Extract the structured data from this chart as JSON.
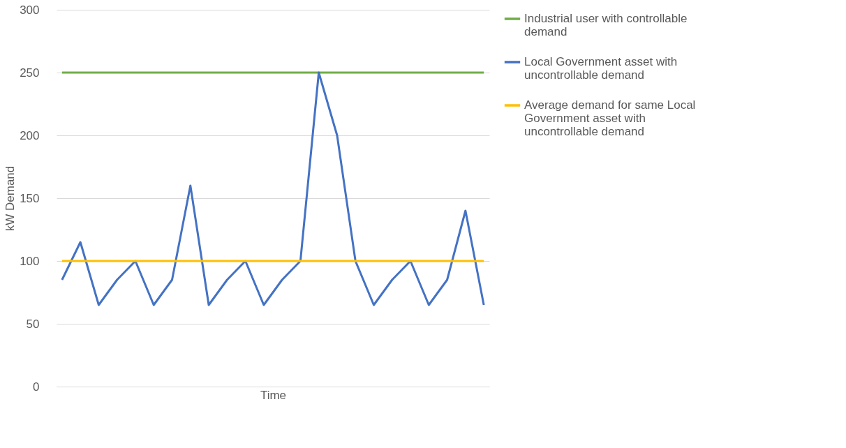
{
  "chart_data": {
    "type": "line",
    "xlabel": "Time",
    "ylabel": "kW Demand",
    "categories": [
      null,
      null,
      null,
      null,
      null,
      null,
      null,
      null,
      null,
      null,
      null,
      null,
      null,
      null,
      null,
      null,
      null,
      null,
      null,
      null,
      null,
      null,
      null,
      null
    ],
    "series": [
      {
        "name": "Industrial user with controllable demand",
        "color": "#70ad47",
        "values": [
          250,
          250,
          250,
          250,
          250,
          250,
          250,
          250,
          250,
          250,
          250,
          250,
          250,
          250,
          250,
          250,
          250,
          250,
          250,
          250,
          250,
          250,
          250,
          250
        ]
      },
      {
        "name": "Local Government asset with uncontrollable demand",
        "color": "#4472c4",
        "values": [
          85,
          115,
          65,
          85,
          100,
          65,
          85,
          160,
          65,
          85,
          100,
          65,
          85,
          100,
          250,
          200,
          100,
          65,
          85,
          100,
          65,
          85,
          140,
          65
        ]
      },
      {
        "name": "Average demand for same Local Government asset with uncontrollable demand",
        "color": "#ffc000",
        "values": [
          100,
          100,
          100,
          100,
          100,
          100,
          100,
          100,
          100,
          100,
          100,
          100,
          100,
          100,
          100,
          100,
          100,
          100,
          100,
          100,
          100,
          100,
          100,
          100
        ]
      }
    ],
    "ylim": [
      0,
      300
    ],
    "yticks": [
      0,
      50,
      100,
      150,
      200,
      250,
      300
    ],
    "grid": "y",
    "legend": "right",
    "tick_labels": "y",
    "marker": "none",
    "line_style": "solid"
  }
}
